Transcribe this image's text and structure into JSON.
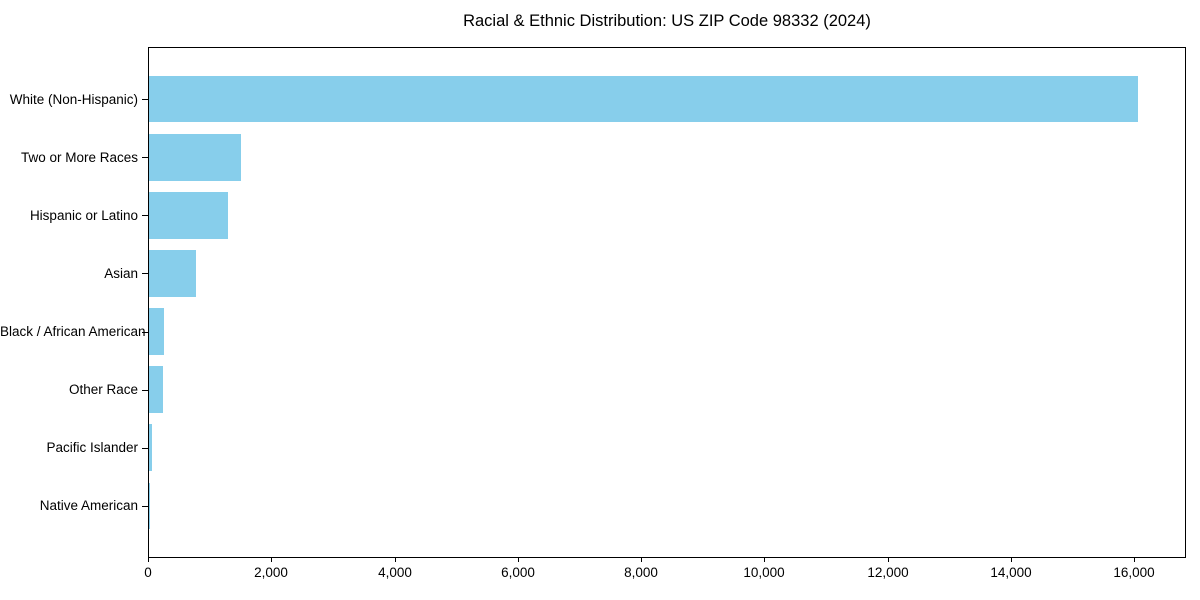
{
  "chart_data": {
    "type": "bar",
    "orientation": "horizontal",
    "title": "Racial & Ethnic Distribution: US ZIP Code 98332 (2024)",
    "xlabel": "",
    "ylabel": "",
    "categories": [
      "White (Non-Hispanic)",
      "Two or More Races",
      "Hispanic or Latino",
      "Asian",
      "Black / African American",
      "Other Race",
      "Pacific Islander",
      "Native American"
    ],
    "values": [
      16040,
      1490,
      1285,
      760,
      250,
      230,
      50,
      15
    ],
    "xlim": [
      0,
      16842
    ],
    "xticks": [
      0,
      2000,
      4000,
      6000,
      8000,
      10000,
      12000,
      14000,
      16000
    ],
    "xtick_labels": [
      "0",
      "2,000",
      "4,000",
      "6,000",
      "8,000",
      "10,000",
      "12,000",
      "14,000",
      "16,000"
    ],
    "bar_color": "#87CEEB",
    "axis_color": "#000000",
    "text_color": "#000000",
    "background_color": "#ffffff",
    "grid": false,
    "legend": false
  }
}
